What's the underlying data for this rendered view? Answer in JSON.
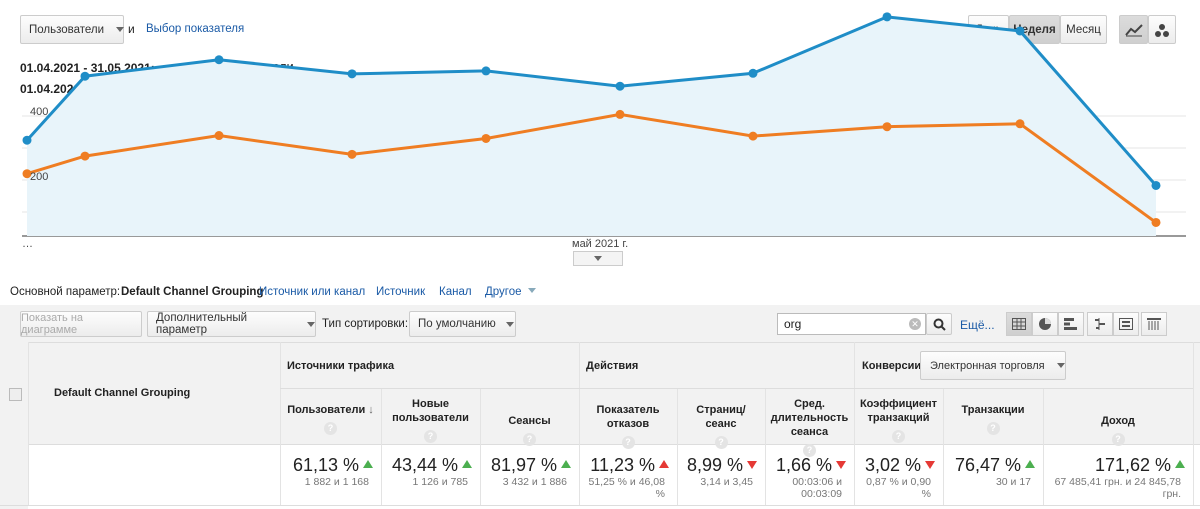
{
  "metric_selector": {
    "value": "Пользователи",
    "and": "и",
    "choose_metric": "Выбор показателя"
  },
  "period_buttons": [
    "День",
    "Неделя",
    "Месяц"
  ],
  "legend": [
    {
      "range": "01.04.2021 - 31.05.2021:",
      "label": "Пользователи",
      "color": "#1f8dc7"
    },
    {
      "range": "01.04.2020 - 31.05.2020:",
      "label": "Пользователи",
      "color": "#ef7d22"
    }
  ],
  "chart_data": {
    "type": "line",
    "ylim": [
      0,
      400
    ],
    "yticks": [
      "400",
      "200"
    ],
    "x_first_label": "…",
    "x_center_label": "май 2021 г.",
    "series": [
      {
        "name": "Пользователи",
        "color": "#1f8dc7",
        "values": [
          163,
          272,
          300,
          276,
          281,
          255,
          277,
          373,
          349,
          86
        ]
      },
      {
        "name": "Пользователи",
        "color": "#ef7d22",
        "values": [
          106,
          136,
          171,
          139,
          166,
          207,
          170,
          186,
          191,
          23
        ]
      }
    ]
  },
  "dimension_bar": {
    "label": "Основной параметр:",
    "active": "Default Channel Grouping",
    "options": [
      "Источник или канал",
      "Источник",
      "Канал"
    ],
    "other": "Другое"
  },
  "toolbar": {
    "show_chart": "Показать на диаграмме",
    "secondary": "Дополнительный параметр",
    "sort_label": "Тип сортировки:",
    "sort_value": "По умолчанию",
    "search_value": "org",
    "more": "Ещё..."
  },
  "table": {
    "dim_header": "Default Channel Grouping",
    "groups": {
      "traffic": "Источники трафика",
      "actions": "Действия",
      "conversions": "Конверсии",
      "conv_select": "Электронная торговля"
    },
    "columns": [
      {
        "label": "Пользователи",
        "pct": "61,13 %",
        "dir": "up",
        "sub": "1 882 и 1 168"
      },
      {
        "label": "Новые пользователи",
        "pct": "43,44 %",
        "dir": "up",
        "sub": "1 126 и 785"
      },
      {
        "label": "Сеансы",
        "pct": "81,97 %",
        "dir": "up",
        "sub": "3 432 и 1 886"
      },
      {
        "label": "Показатель отказов",
        "pct": "11,23 %",
        "dir": "up-red",
        "sub": "51,25 % и 46,08 %"
      },
      {
        "label": "Страниц/ сеанс",
        "pct": "8,99 %",
        "dir": "down",
        "sub": "3,14 и 3,45"
      },
      {
        "label": "Сред. длительность сеанса",
        "pct": "1,66 %",
        "dir": "down",
        "sub": "00:03:06 и 00:03:09"
      },
      {
        "label": "Коэффициент транзакций",
        "pct": "3,02 %",
        "dir": "down",
        "sub": "0,87 % и 0,90 %"
      },
      {
        "label": "Транзакции",
        "pct": "76,47 %",
        "dir": "up",
        "sub": "30 и 17"
      },
      {
        "label": "Доход",
        "pct": "171,62 %",
        "dir": "up",
        "sub": "67 485,41 грн. и 24 845,78 грн."
      }
    ]
  }
}
